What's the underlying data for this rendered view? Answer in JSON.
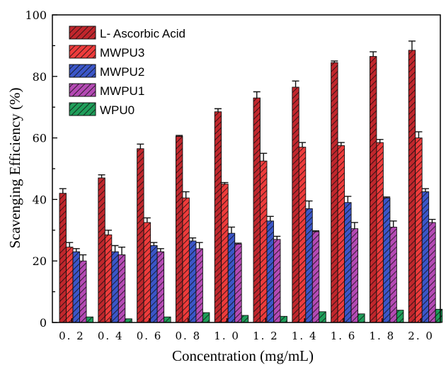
{
  "chart_data": {
    "type": "bar",
    "xlabel": "Concentration (mg/mL)",
    "ylabel": "Scavenging Efficiency (%)",
    "ylim": [
      0,
      100
    ],
    "yticks": [
      0,
      20,
      40,
      60,
      80,
      100
    ],
    "categories": [
      "0. 2",
      "0. 4",
      "0. 6",
      "0. 8",
      "1. 0",
      "1. 2",
      "1. 4",
      "1. 6",
      "1. 8",
      "2. 0"
    ],
    "legend_position": "top-left",
    "grid": false,
    "series": [
      {
        "name": "L- Ascorbic Acid",
        "color": "#c0262c",
        "values": [
          42,
          47,
          56.5,
          60.5,
          68.5,
          73,
          76.5,
          84.5,
          86.5,
          88.5
        ],
        "errors": [
          1.5,
          1,
          1.5,
          0.3,
          1,
          2,
          2,
          0.5,
          1.5,
          3
        ]
      },
      {
        "name": "MWPU3",
        "color": "#ee3b3b",
        "values": [
          24.5,
          28.5,
          32.5,
          40.5,
          45,
          52.5,
          57,
          57.5,
          58.5,
          60
        ],
        "errors": [
          1.5,
          1.5,
          1.5,
          2,
          0.5,
          2.5,
          1.5,
          1,
          1,
          2
        ]
      },
      {
        "name": "MWPU2",
        "color": "#3b56c8",
        "values": [
          23,
          23,
          25,
          26.5,
          29,
          33,
          37,
          39,
          40.5,
          42.5
        ],
        "errors": [
          1,
          2,
          1,
          1,
          2,
          1.5,
          2.5,
          2,
          0.3,
          1
        ]
      },
      {
        "name": "MWPU1",
        "color": "#b44ab4",
        "values": [
          20,
          22,
          23,
          24,
          25.5,
          27,
          29.5,
          30.5,
          31,
          32.5
        ],
        "errors": [
          2,
          2.5,
          1,
          2,
          0.3,
          1,
          0.3,
          2,
          2,
          1
        ]
      },
      {
        "name": "WPU0",
        "color": "#1f9e5a",
        "values": [
          1.8,
          1.2,
          1.8,
          3.2,
          2.3,
          2,
          3.5,
          2.8,
          4,
          4.3
        ],
        "errors": [
          0,
          0,
          0,
          0,
          0,
          0,
          0,
          0,
          0,
          0
        ]
      }
    ]
  }
}
